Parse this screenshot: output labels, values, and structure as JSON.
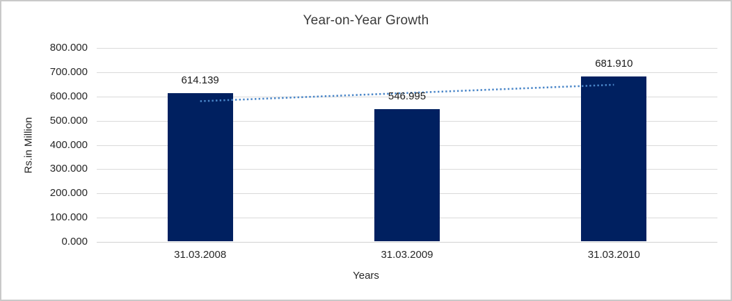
{
  "chart_data": {
    "type": "bar",
    "title": "Year-on-Year Growth",
    "categories": [
      "31.03.2008",
      "31.03.2009",
      "31.03.2010"
    ],
    "values": [
      614.139,
      546.995,
      681.91
    ],
    "data_labels": [
      "614.139",
      "546.995",
      "681.910"
    ],
    "xlabel": "Years",
    "ylabel": "Rs.in Million",
    "ylim": [
      0,
      800
    ],
    "ytick_step": 100,
    "ytick_decimals": 3,
    "grid": true,
    "legend": "none",
    "bar_color": "#002060",
    "trendline": {
      "fit": "linear",
      "style": "dotted",
      "color": "#4a86c8"
    }
  }
}
